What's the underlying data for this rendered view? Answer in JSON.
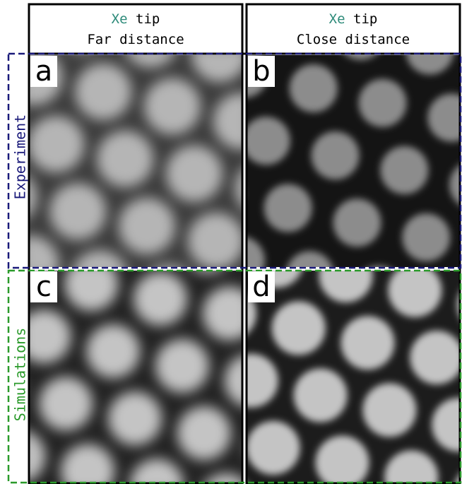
{
  "columns": [
    {
      "tip_element": "Xe",
      "tip_word": "tip",
      "distance": "Far distance"
    },
    {
      "tip_element": "Xe",
      "tip_word": "tip",
      "distance": "Close distance"
    }
  ],
  "rows": [
    {
      "label": "Experiment"
    },
    {
      "label": "Simulations"
    }
  ],
  "panels": [
    {
      "letter": "a"
    },
    {
      "letter": "b"
    },
    {
      "letter": "c"
    },
    {
      "letter": "d"
    }
  ]
}
